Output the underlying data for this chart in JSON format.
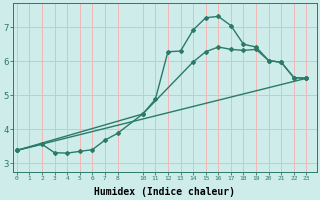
{
  "bg_color": "#ceecea",
  "grid_color": "#f0b8b8",
  "line_color": "#2a7a6a",
  "marker": "D",
  "markersize": 2,
  "linewidth": 1.0,
  "xlabel": "Humidex (Indice chaleur)",
  "xlabel_fontsize": 7,
  "yticks": [
    3,
    4,
    5,
    6,
    7
  ],
  "xticks": [
    0,
    1,
    2,
    3,
    4,
    5,
    6,
    7,
    8,
    10,
    11,
    12,
    13,
    14,
    15,
    16,
    17,
    18,
    19,
    20,
    21,
    22,
    23
  ],
  "xlim": [
    -0.3,
    23.8
  ],
  "ylim": [
    2.75,
    7.7
  ],
  "curve_max": {
    "x": [
      0,
      2,
      3,
      4,
      5,
      6,
      7,
      8,
      10,
      11,
      12,
      13,
      14,
      15,
      16,
      17,
      18,
      19,
      20,
      21,
      22,
      23
    ],
    "y": [
      3.38,
      3.56,
      3.31,
      3.3,
      3.35,
      3.4,
      3.68,
      3.88,
      4.45,
      4.88,
      6.28,
      6.3,
      6.92,
      7.28,
      7.32,
      7.05,
      6.5,
      6.42,
      6.02,
      5.97,
      5.52,
      5.5
    ]
  },
  "curve_mid": {
    "x": [
      0,
      10,
      14,
      15,
      16,
      17,
      18,
      19,
      20,
      21,
      22,
      23
    ],
    "y": [
      3.38,
      4.45,
      5.98,
      6.28,
      6.42,
      6.35,
      6.32,
      6.35,
      6.02,
      5.97,
      5.52,
      5.5
    ]
  },
  "curve_min": {
    "x": [
      0,
      23
    ],
    "y": [
      3.38,
      5.5
    ]
  }
}
